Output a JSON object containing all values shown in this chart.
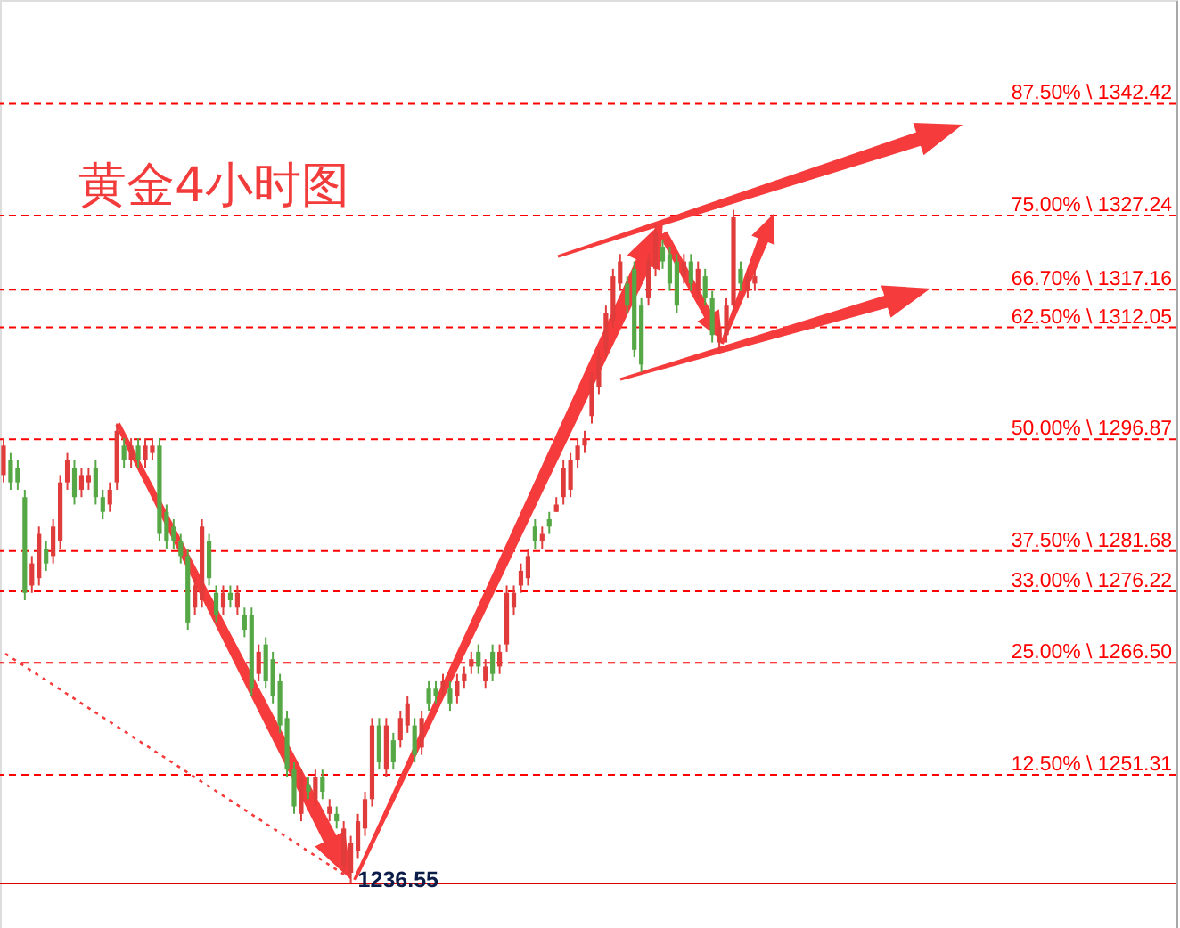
{
  "chart_data": {
    "type": "candlestick",
    "title": "黄金4小时图",
    "categories": [
      null,
      null,
      null,
      null,
      null,
      null,
      null,
      null,
      null,
      null,
      null,
      null,
      null,
      null,
      null,
      null,
      null,
      null,
      null,
      null,
      null,
      null,
      null,
      null,
      null,
      null,
      null,
      null,
      null,
      null,
      null,
      null,
      null,
      null,
      null,
      null,
      null,
      null,
      null,
      null,
      null,
      null,
      null,
      null,
      null,
      null,
      null,
      null,
      null,
      null,
      null,
      null,
      null,
      null,
      null,
      null,
      null,
      null,
      null,
      null,
      null,
      null,
      null,
      null,
      null,
      null,
      null,
      null,
      null,
      null,
      null,
      null,
      null,
      null,
      null,
      null,
      null,
      null,
      null,
      null,
      null,
      null,
      null,
      null,
      null,
      null,
      null,
      null,
      null,
      null,
      null,
      null,
      null,
      null,
      null,
      null,
      null,
      null,
      null,
      null,
      null,
      null,
      null,
      null,
      null,
      null,
      null,
      null,
      null,
      null,
      null,
      null,
      null,
      null,
      null,
      null,
      null,
      null,
      null,
      null,
      null,
      null,
      null,
      null,
      null,
      null,
      null,
      null,
      null,
      null,
      null,
      null,
      null,
      null,
      null,
      null,
      null,
      null,
      null,
      null,
      null,
      null,
      null,
      null,
      null,
      null,
      null,
      null,
      null,
      null,
      null,
      null,
      null,
      null,
      null,
      null,
      null,
      null,
      null,
      null,
      null,
      null,
      null,
      null,
      null,
      null
    ],
    "ohlc": [
      [
        1292,
        1297,
        1291,
        1296
      ],
      [
        1294,
        1295,
        1290,
        1291
      ],
      [
        1293,
        1294,
        1290,
        1291
      ],
      [
        1289,
        1290,
        1275,
        1276
      ],
      [
        1277,
        1281,
        1276,
        1280
      ],
      [
        1278,
        1285,
        1277,
        1284
      ],
      [
        1282,
        1283,
        1279,
        1280
      ],
      [
        1281,
        1286,
        1280,
        1285
      ],
      [
        1283,
        1292,
        1282,
        1291
      ],
      [
        1291,
        1295,
        1290,
        1294
      ],
      [
        1293,
        1294,
        1288,
        1289
      ],
      [
        1290,
        1293,
        1289,
        1292
      ],
      [
        1291,
        1293,
        1290,
        1292
      ],
      [
        1293,
        1294,
        1288,
        1289
      ],
      [
        1289,
        1290,
        1286,
        1287
      ],
      [
        1288,
        1291,
        1287,
        1290
      ],
      [
        1291,
        1299,
        1290,
        1298
      ],
      [
        1296,
        1297,
        1293,
        1294
      ],
      [
        1294,
        1297,
        1293,
        1296
      ],
      [
        1296,
        1297,
        1293,
        1294
      ],
      [
        1294,
        1297,
        1293,
        1296
      ],
      [
        1295,
        1297,
        1294,
        1296
      ],
      [
        1296,
        1297,
        1283,
        1284
      ],
      [
        1287,
        1288,
        1282,
        1283
      ],
      [
        1285,
        1286,
        1282,
        1283
      ],
      [
        1283,
        1284,
        1280,
        1281
      ],
      [
        1281,
        1282,
        1271,
        1272
      ],
      [
        1274,
        1278,
        1273,
        1277
      ],
      [
        1275,
        1286,
        1274,
        1285
      ],
      [
        1283,
        1284,
        1277,
        1278
      ],
      [
        1276,
        1277,
        1272,
        1273
      ],
      [
        1274,
        1277,
        1273,
        1276
      ],
      [
        1276,
        1277,
        1274,
        1275
      ],
      [
        1274,
        1277,
        1273,
        1276
      ],
      [
        1273,
        1274,
        1270,
        1271
      ],
      [
        1273,
        1274,
        1262,
        1263
      ],
      [
        1265,
        1269,
        1264,
        1268
      ],
      [
        1269,
        1270,
        1263,
        1264
      ],
      [
        1267,
        1268,
        1261,
        1262
      ],
      [
        1264,
        1265,
        1257,
        1258
      ],
      [
        1259,
        1260,
        1251,
        1252
      ],
      [
        1252,
        1253,
        1246,
        1247
      ],
      [
        1246,
        1252,
        1245,
        1251
      ],
      [
        1250,
        1251,
        1248,
        1249
      ],
      [
        1248,
        1252,
        1247,
        1251
      ],
      [
        1251,
        1252,
        1248,
        1249
      ],
      [
        1246,
        1248,
        1245,
        1247
      ],
      [
        1246,
        1247,
        1244,
        1245
      ],
      [
        1239,
        1245,
        1238,
        1244
      ],
      [
        1238,
        1243,
        1236.55,
        1242
      ],
      [
        1241,
        1246,
        1240,
        1245
      ],
      [
        1244,
        1249,
        1243,
        1248
      ],
      [
        1248,
        1259,
        1247,
        1258
      ],
      [
        1258,
        1259,
        1252,
        1253
      ],
      [
        1252,
        1259,
        1251,
        1258
      ],
      [
        1256,
        1257,
        1252,
        1253
      ],
      [
        1256,
        1260,
        1255,
        1259
      ],
      [
        1258,
        1262,
        1257,
        1261
      ],
      [
        1258,
        1259,
        1253,
        1254
      ],
      [
        1255,
        1260,
        1254,
        1259
      ],
      [
        1263,
        1264,
        1260,
        1261
      ],
      [
        1263,
        1264,
        1261,
        1262
      ],
      [
        1263,
        1265,
        1262,
        1264
      ],
      [
        1263,
        1264,
        1260,
        1261
      ],
      [
        1262,
        1265,
        1261,
        1264
      ],
      [
        1264,
        1266,
        1263,
        1265
      ],
      [
        1266,
        1268,
        1265,
        1267
      ],
      [
        1268,
        1269,
        1265,
        1266
      ],
      [
        1264,
        1267,
        1263,
        1266
      ],
      [
        1268,
        1269,
        1264,
        1265
      ],
      [
        1266,
        1269,
        1265,
        1268
      ],
      [
        1269,
        1277,
        1268,
        1276
      ],
      [
        1274,
        1277,
        1273,
        1276
      ],
      [
        1277,
        1280,
        1276,
        1279
      ],
      [
        1278,
        1282,
        1277,
        1281
      ],
      [
        1285,
        1286,
        1282,
        1283
      ],
      [
        1283,
        1285,
        1282,
        1284
      ],
      [
        1286,
        1287,
        1284,
        1285
      ],
      [
        1287,
        1289,
        1287,
        1288
      ],
      [
        1289,
        1294,
        1288,
        1293
      ],
      [
        1290,
        1295,
        1289,
        1294
      ],
      [
        1294,
        1297,
        1293,
        1296
      ],
      [
        1296,
        1298,
        1295,
        1297
      ],
      [
        1300,
        1306,
        1299,
        1305
      ],
      [
        1304,
        1309,
        1303,
        1308
      ],
      [
        1309,
        1315,
        1308,
        1314
      ],
      [
        1313,
        1320,
        1312,
        1319
      ],
      [
        1318,
        1322,
        1317,
        1321
      ],
      [
        1318,
        1319,
        1314,
        1315
      ],
      [
        1320,
        1321,
        1308,
        1309
      ],
      [
        1315,
        1316,
        1306,
        1307
      ],
      [
        1316,
        1322,
        1315,
        1321
      ],
      [
        1320,
        1326,
        1319,
        1325
      ],
      [
        1323,
        1324,
        1320,
        1321
      ],
      [
        1322,
        1323,
        1317,
        1318
      ],
      [
        1321,
        1322,
        1314,
        1315
      ],
      [
        1319,
        1322,
        1318,
        1321
      ],
      [
        1321,
        1322,
        1317,
        1318
      ],
      [
        1317,
        1321,
        1316,
        1320
      ],
      [
        1319,
        1320,
        1315,
        1316
      ],
      [
        1316,
        1317,
        1310,
        1311
      ],
      [
        1310,
        1313,
        1309,
        1312
      ],
      [
        1311,
        1316,
        1310,
        1315
      ],
      [
        1315,
        1328,
        1314,
        1327
      ],
      [
        1320,
        1321,
        1317,
        1318
      ],
      [
        1317,
        1320,
        1316,
        1319
      ],
      [
        1318,
        1320,
        1317,
        1319
      ],
      null,
      null,
      null,
      null,
      null,
      null,
      null,
      null,
      null,
      null,
      null,
      null,
      null,
      null,
      null,
      null,
      null,
      null,
      null,
      null,
      null,
      null,
      null,
      null,
      null,
      null,
      null,
      null,
      null,
      null,
      null,
      null,
      null,
      null,
      null,
      null,
      null,
      null,
      null,
      null,
      null,
      null,
      null,
      null,
      null,
      null,
      null,
      null,
      null,
      null,
      null,
      null,
      null,
      null,
      null,
      null,
      null,
      null,
      null
    ],
    "colors": [
      "#e03c3c",
      "#56a846",
      "#56a846",
      "#56a846",
      "#e03c3c",
      "#e03c3c",
      "#56a846",
      "#e03c3c",
      "#e03c3c",
      "#e03c3c",
      "#56a846",
      "#e03c3c",
      "#e03c3c",
      "#56a846",
      "#56a846",
      "#e03c3c",
      "#e03c3c",
      "#56a846",
      "#e03c3c",
      "#56a846",
      "#e03c3c",
      "#e03c3c",
      "#56a846",
      "#56a846",
      "#56a846",
      "#56a846",
      "#56a846",
      "#e03c3c",
      "#e03c3c",
      "#56a846",
      "#56a846",
      "#e03c3c",
      "#56a846",
      "#e03c3c",
      "#56a846",
      "#56a846",
      "#e03c3c",
      "#56a846",
      "#56a846",
      "#56a846",
      "#56a846",
      "#56a846",
      "#e03c3c",
      "#56a846",
      "#e03c3c",
      "#56a846",
      "#e03c3c",
      "#56a846",
      "#e03c3c",
      "#e03c3c",
      "#e03c3c",
      "#e03c3c",
      "#e03c3c",
      "#56a846",
      "#e03c3c",
      "#56a846",
      "#e03c3c",
      "#e03c3c",
      "#56a846",
      "#e03c3c",
      "#56a846",
      "#56a846",
      "#e03c3c",
      "#56a846",
      "#e03c3c",
      "#e03c3c",
      "#e03c3c",
      "#56a846",
      "#e03c3c",
      "#56a846",
      "#e03c3c",
      "#e03c3c",
      "#e03c3c",
      "#e03c3c",
      "#e03c3c",
      "#56a846",
      "#e03c3c",
      "#56a846",
      "#e03c3c",
      "#e03c3c",
      "#e03c3c",
      "#e03c3c",
      "#e03c3c",
      "#e03c3c",
      "#e03c3c",
      "#e03c3c",
      "#e03c3c",
      "#e03c3c",
      "#56a846",
      "#56a846",
      "#56a846",
      "#e03c3c",
      "#e03c3c",
      "#56a846",
      "#56a846",
      "#56a846",
      "#e03c3c",
      "#56a846",
      "#e03c3c",
      "#56a846",
      "#56a846",
      "#e03c3c",
      "#e03c3c",
      "#e03c3c",
      "#56a846",
      "#e03c3c",
      "#e03c3c",
      null,
      null,
      null,
      null,
      null,
      null,
      null,
      null,
      null,
      null,
      null,
      null,
      null,
      null,
      null,
      null,
      null,
      null,
      null,
      null,
      null,
      null,
      null,
      null,
      null,
      null,
      null,
      null,
      null,
      null,
      null,
      null,
      null,
      null,
      null,
      null,
      null,
      null,
      null,
      null,
      null,
      null,
      null,
      null,
      null,
      null,
      null,
      null,
      null,
      null,
      null,
      null,
      null,
      null,
      null,
      null,
      null,
      null,
      null
    ],
    "ylim": [
      1230.5,
      1356.5
    ],
    "yticks": [
      1342.42,
      1327.24,
      1317.16,
      1312.05,
      1296.87,
      1281.68,
      1276.22,
      {
        "value": 1266.5,
        "label": "1266.50"
      },
      1251.31
    ],
    "y2lim": [
      -4.63,
      99.09
    ],
    "y2ticks": [
      {
        "value": 87.5,
        "label": "87.50% \\"
      },
      {
        "value": 75,
        "label": "75.00% \\"
      },
      {
        "value": 66.7,
        "label": "66.70% \\"
      },
      {
        "value": 62.5,
        "label": "62.50% \\"
      },
      {
        "value": 50,
        "label": "50.00% \\"
      },
      {
        "value": 37.5,
        "label": "37.50% \\"
      },
      {
        "value": 33,
        "label": "33.00% \\"
      },
      {
        "value": 25,
        "label": "25.00% \\"
      },
      {
        "value": 12.5,
        "label": "12.50% \\"
      }
    ],
    "tick_labels": "y",
    "ref_lines": [
      {
        "axis": "y",
        "value": 1342.42,
        "color": "#ff0000",
        "line_style": "dashed"
      },
      {
        "axis": "y",
        "value": 1327.24,
        "color": "#ff0000",
        "line_style": "dashed"
      },
      {
        "axis": "y",
        "value": 1317.16,
        "color": "#ff0000",
        "line_style": "dashed"
      },
      {
        "axis": "y",
        "value": 1312.05,
        "color": "#ff0000",
        "line_style": "dashed"
      },
      {
        "axis": "y",
        "value": 1296.87,
        "color": "#ff0000",
        "line_style": "dashed"
      },
      {
        "axis": "y",
        "value": 1281.68,
        "color": "#ff0000",
        "line_style": "dashed"
      },
      {
        "axis": "y",
        "value": 1276.22,
        "color": "#ff0000",
        "line_style": "dashed"
      },
      {
        "axis": "y",
        "value": 1266.5,
        "color": "#ff0000",
        "line_style": "dashed"
      },
      {
        "axis": "y",
        "value": 1251.31,
        "color": "#ff0000",
        "line_style": "dashed"
      },
      {
        "axis": "y",
        "value": 1236.55,
        "label": "1236.55",
        "color": "#e00000",
        "line_style": "solid"
      }
    ]
  }
}
